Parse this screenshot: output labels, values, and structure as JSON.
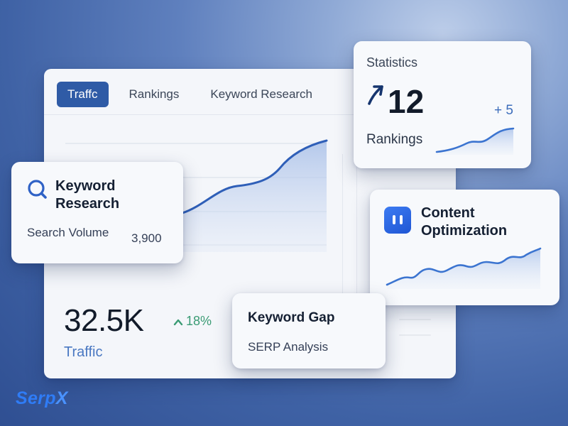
{
  "tabs": [
    {
      "label": "Traffc",
      "active": true
    },
    {
      "label": "Rankings",
      "active": false
    },
    {
      "label": "Keyword Research",
      "active": false
    }
  ],
  "traffic": {
    "value": "32.5K",
    "change": "18%",
    "change_icon": "arrow-up-icon",
    "label": "Traffic"
  },
  "keyword_research": {
    "icon": "search-icon",
    "title": "Keyword Research",
    "metric_label": "Search Volume",
    "metric_value": "3,900"
  },
  "statistics": {
    "title": "Statistics",
    "icon": "trend-arrow-icon",
    "value": "12",
    "change": "+ 5",
    "label": "Rankings"
  },
  "content_optimization": {
    "icon": "pause-icon",
    "title": "Content Optimization"
  },
  "keyword_gap": {
    "title": "Keyword Gap",
    "subtitle": "SERP Analysis"
  },
  "brand": {
    "name_a": "Serp",
    "name_b": "X"
  },
  "colors": {
    "accent": "#2f5ba6",
    "line": "#2f5fb8",
    "positive": "#3a9b74",
    "brand": "#2f7cf6"
  }
}
